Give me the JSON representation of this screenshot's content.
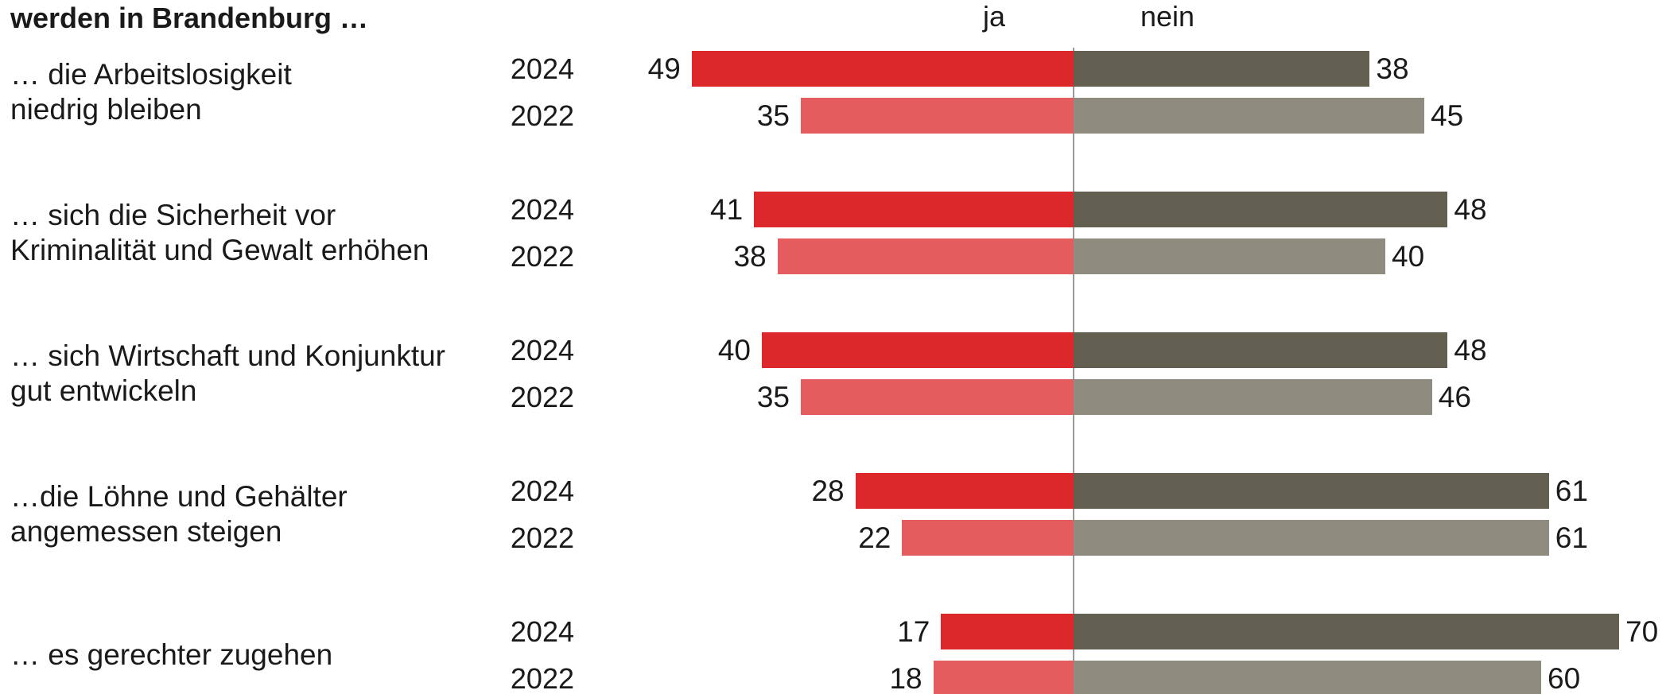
{
  "chart_data": {
    "type": "diverging-bar",
    "title": "werden in Brandenburg …",
    "years": [
      "2024",
      "2022"
    ],
    "categories": [
      "… die Arbeitslosigkeit\nniedrig bleiben",
      "… sich die Sicherheit vor\nKriminalität und Gewalt erhöhen",
      "… sich Wirtschaft und Konjunktur\ngut entwickeln",
      "…die Löhne und Gehälter\nangemessen steigen",
      "… es gerechter zugehen"
    ],
    "series": [
      {
        "name": "ja",
        "side": "left",
        "colors": [
          "#dc282b",
          "#e55c5e"
        ],
        "values": [
          [
            49,
            35
          ],
          [
            41,
            38
          ],
          [
            40,
            35
          ],
          [
            28,
            22
          ],
          [
            17,
            18
          ]
        ]
      },
      {
        "name": "nein",
        "side": "right",
        "colors": [
          "#636052",
          "#8f8c7f"
        ],
        "values": [
          [
            38,
            45
          ],
          [
            48,
            40
          ],
          [
            48,
            46
          ],
          [
            61,
            61
          ],
          [
            70,
            60
          ]
        ]
      }
    ]
  }
}
